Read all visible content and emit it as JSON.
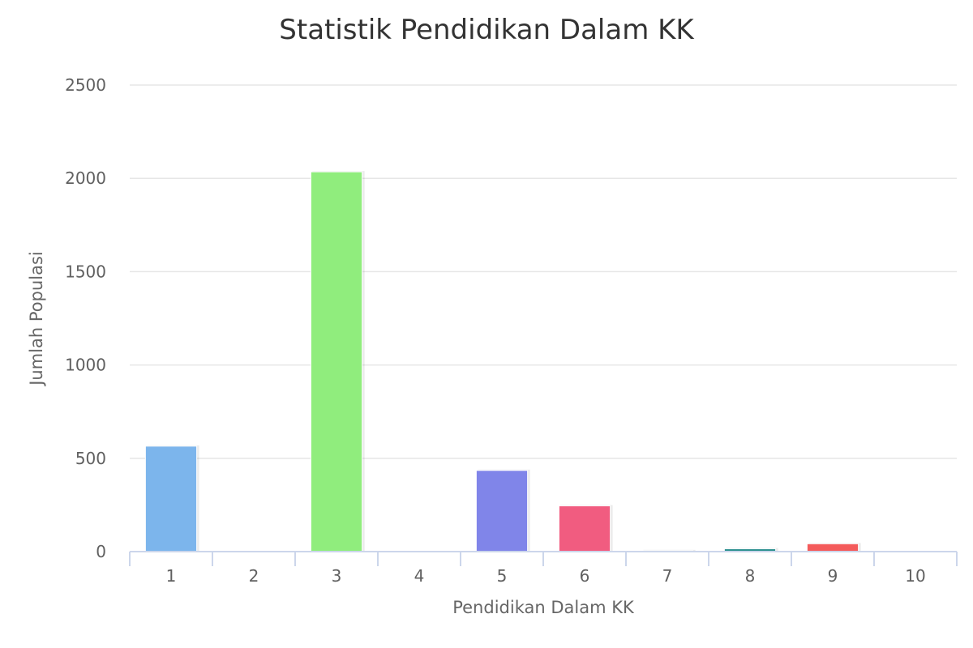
{
  "chart_data": {
    "type": "bar",
    "title": "Statistik Pendidikan Dalam KK",
    "xlabel": "Pendidikan Dalam KK",
    "ylabel": "Jumlah Populasi",
    "categories": [
      "1",
      "2",
      "3",
      "4",
      "5",
      "6",
      "7",
      "8",
      "9",
      "10"
    ],
    "values": [
      565,
      0,
      2035,
      0,
      435,
      245,
      5,
      15,
      42,
      0
    ],
    "colors": [
      "#7cb5ec",
      "#434348",
      "#90ed7d",
      "#f7a35c",
      "#8085e9",
      "#f15c80",
      "#e4d354",
      "#2b908f",
      "#f45b5b",
      "#91e8e1"
    ],
    "ylim": [
      0,
      2500
    ],
    "yticks": [
      0,
      500,
      1000,
      1500,
      2000,
      2500
    ],
    "grid": true
  }
}
